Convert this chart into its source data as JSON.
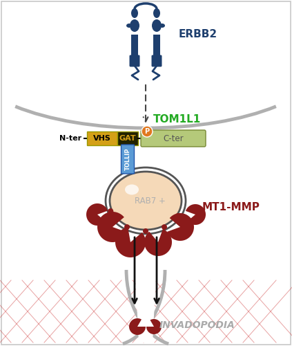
{
  "bg_color": "#ffffff",
  "border_color": "#c8c8c8",
  "cell_membrane_color": "#b0b0b0",
  "cell_membrane_lw": 3.5,
  "erbb2_color": "#1e3f6e",
  "erbb2_label": "ERBB2",
  "erbb2_label_color": "#1e3f6e",
  "erbb2_label_fontsize": 11,
  "vhs_color": "#d4a017",
  "vhs_label": "VHS",
  "vhs_label_color": "#000000",
  "gat_color": "#222200",
  "gat_label": "GAT",
  "gat_label_color": "#d4a017",
  "cter_color": "#b5c97a",
  "cter_label": "C-ter",
  "cter_label_color": "#555555",
  "tom1l1_label": "TOM1L1",
  "tom1l1_label_color": "#22aa22",
  "tom1l1_label_fontsize": 11,
  "nter_label": "N-ter",
  "tollip_color": "#5b9bd5",
  "tollip_label": "TOLLIP",
  "tollip_label_color": "#ffffff",
  "phospho_color": "#e07820",
  "phospho_label": "P",
  "rab7_fill_color": "#f5d9b8",
  "rab7_shine_color": "#fffaf0",
  "rab7_label": "RAB7 +",
  "rab7_label_color": "#b0b0b0",
  "mt1mmp_color": "#8b1a1a",
  "mt1mmp_label": "MT1-MMP",
  "mt1mmp_label_color": "#8b1a1a",
  "mt1mmp_label_fontsize": 11,
  "invadopodia_label": "INVADOPODIA",
  "invadopodia_label_color": "#aaaaaa",
  "invadopodia_label_fontsize": 10,
  "ecm_line_color": "#cc3333",
  "arrow_color": "#111111",
  "dashed_arrow_color": "#444444",
  "figsize": [
    4.23,
    5.0
  ],
  "dpi": 100
}
